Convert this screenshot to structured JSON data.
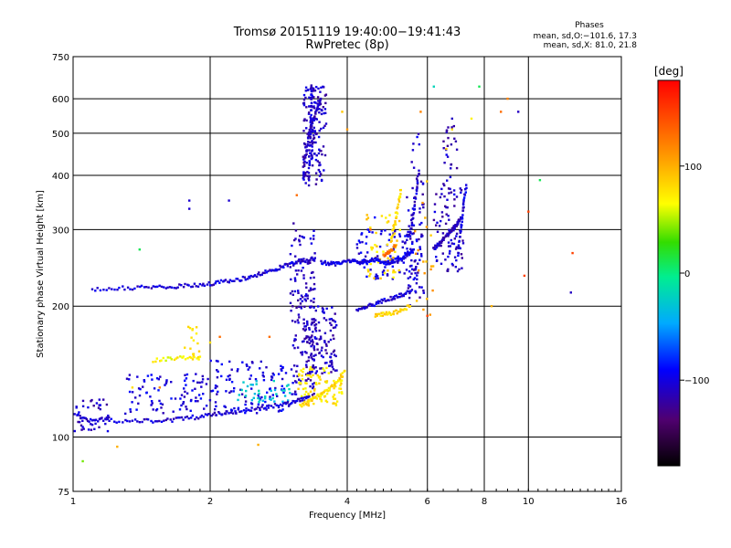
{
  "chart_data": {
    "type": "scatter",
    "title": "Tromsø 20151119 19:40:00−19:41:43",
    "subtitle": "RwPretec (8p)",
    "xlabel": "Frequency [MHz]",
    "ylabel": "Stationary phase Virtual Height [km]",
    "x_scale": "log",
    "y_scale": "log",
    "xlim": [
      1,
      16
    ],
    "ylim": [
      75,
      750
    ],
    "x_ticks": [
      1,
      2,
      4,
      6,
      8,
      10,
      16
    ],
    "y_ticks": [
      75,
      100,
      200,
      300,
      400,
      500,
      600,
      750
    ],
    "grid": true,
    "phases_box": {
      "heading": "Phases",
      "line1": "mean, sd,O:−101.6, 17.3",
      "line2": "mean, sd,X:  81.0, 21.8"
    },
    "colorbar": {
      "label": "[deg]",
      "ticks": [
        "100",
        "0",
        "−100"
      ],
      "tick_values": [
        100,
        0,
        -100
      ],
      "range": [
        -180,
        180
      ]
    },
    "traces": [
      {
        "x": [
          1.02,
          1.06,
          1.1,
          1.15,
          1.2,
          1.3,
          1.4,
          1.5,
          1.6,
          1.7,
          1.8,
          1.9,
          2.0,
          2.1,
          2.2,
          2.3,
          2.45,
          2.6,
          2.75,
          2.9,
          3.0,
          3.1,
          3.2,
          3.3
        ],
        "y": [
          113,
          110,
          109,
          110,
          109,
          109,
          109,
          109,
          109,
          110,
          111,
          111,
          113,
          113,
          114,
          115,
          116,
          117,
          118,
          119,
          120,
          121,
          122,
          124
        ],
        "phase": -105
      },
      {
        "x": [
          1.1,
          1.2,
          1.3,
          1.4,
          1.5,
          1.6,
          1.7,
          1.8,
          1.9,
          2.0,
          2.1,
          2.2,
          2.3,
          2.4,
          2.5,
          2.6,
          2.7,
          2.8,
          2.9,
          3.0,
          3.1,
          3.2,
          3.3,
          3.4
        ],
        "y": [
          219,
          220,
          220,
          221,
          221,
          222,
          222,
          223,
          223,
          225,
          227,
          228,
          230,
          232,
          235,
          238,
          241,
          244,
          247,
          250,
          252,
          254,
          256,
          258
        ],
        "phase": -105
      },
      {
        "x": [
          3.5,
          3.6,
          3.7,
          3.8,
          3.9,
          4.0,
          4.1,
          4.2,
          4.3,
          4.4,
          4.5,
          4.6,
          4.7,
          4.8,
          4.9,
          5.0,
          5.1,
          5.2,
          5.3,
          5.4,
          5.5,
          5.6
        ],
        "y": [
          252,
          251,
          251,
          250,
          252,
          253,
          254,
          253,
          252,
          253,
          255,
          256,
          254,
          252,
          251,
          253,
          255,
          257,
          259,
          262,
          265,
          270
        ],
        "phase": -100
      },
      {
        "x": [
          4.2,
          4.35,
          4.5,
          4.65,
          4.8,
          4.95,
          5.1,
          5.25,
          5.4,
          5.55
        ],
        "y": [
          196,
          198,
          201,
          203,
          206,
          208,
          210,
          212,
          214,
          218
        ],
        "phase": -105
      },
      {
        "x": [
          4.6,
          4.75,
          4.9,
          5.05,
          5.2,
          5.35,
          5.5
        ],
        "y": [
          191,
          191,
          192,
          193,
          195,
          197,
          200
        ],
        "phase": 80
      },
      {
        "x": [
          3.15,
          3.25,
          3.35,
          3.45,
          3.55,
          3.65,
          3.75,
          3.85,
          3.95
        ],
        "y": [
          118,
          120,
          122,
          124,
          126,
          129,
          132,
          136,
          142
        ],
        "phase": 80
      },
      {
        "x": [
          1.5,
          1.6,
          1.7,
          1.8,
          1.9
        ],
        "y": [
          150,
          151,
          152,
          152,
          153
        ],
        "phase": 70
      },
      {
        "x": [
          3.3,
          3.3,
          3.31,
          3.32,
          3.33,
          3.33,
          3.34,
          3.34,
          3.35,
          3.35
        ],
        "y": [
          380,
          420,
          460,
          500,
          540,
          580,
          620,
          650,
          440,
          480
        ],
        "phase": -105
      },
      {
        "x": [
          3.2,
          3.22,
          3.25,
          3.27,
          3.3,
          3.34,
          3.38,
          3.42,
          3.46,
          3.5
        ],
        "y": [
          400,
          430,
          450,
          470,
          500,
          520,
          545,
          560,
          580,
          600
        ],
        "phase": -110
      },
      {
        "x": [
          6.2,
          6.3,
          6.4,
          6.5,
          6.6,
          6.7,
          6.8,
          6.9,
          7.0,
          7.1
        ],
        "y": [
          270,
          275,
          280,
          285,
          290,
          295,
          300,
          305,
          310,
          320
        ],
        "phase": -110
      },
      {
        "x": [
          7.0,
          7.05,
          7.1,
          7.15,
          7.2,
          7.25,
          7.3
        ],
        "y": [
          260,
          280,
          300,
          320,
          340,
          360,
          380
        ],
        "phase": -100
      },
      {
        "x": [
          5.5,
          5.55,
          5.6,
          5.65,
          5.7,
          5.75
        ],
        "y": [
          290,
          310,
          330,
          350,
          380,
          410
        ],
        "phase": -105
      },
      {
        "x": [
          5.0,
          5.05,
          5.1,
          5.15,
          5.2,
          5.25
        ],
        "y": [
          280,
          300,
          310,
          330,
          350,
          370
        ],
        "phase": 80
      },
      {
        "x": [
          4.8,
          4.9,
          5.0,
          5.1
        ],
        "y": [
          260,
          265,
          270,
          275
        ],
        "phase": 130
      }
    ],
    "scatter": [
      {
        "x": 8.7,
        "y": 560,
        "phase": 130
      },
      {
        "x": 9.0,
        "y": 600,
        "phase": 120
      },
      {
        "x": 7.5,
        "y": 540,
        "phase": 70
      },
      {
        "x": 6.8,
        "y": 510,
        "phase": 80
      },
      {
        "x": 7.8,
        "y": 640,
        "phase": 10
      },
      {
        "x": 6.2,
        "y": 640,
        "phase": -20
      },
      {
        "x": 5.8,
        "y": 560,
        "phase": 120
      },
      {
        "x": 4.0,
        "y": 510,
        "phase": 110
      },
      {
        "x": 3.9,
        "y": 560,
        "phase": 90
      },
      {
        "x": 9.5,
        "y": 560,
        "phase": -110
      },
      {
        "x": 10.0,
        "y": 330,
        "phase": 150
      },
      {
        "x": 10.6,
        "y": 390,
        "phase": 10
      },
      {
        "x": 12.5,
        "y": 265,
        "phase": 150
      },
      {
        "x": 12.4,
        "y": 215,
        "phase": -110
      },
      {
        "x": 9.8,
        "y": 235,
        "phase": 150
      },
      {
        "x": 8.3,
        "y": 200,
        "phase": 100
      },
      {
        "x": 6.0,
        "y": 190,
        "phase": 150
      },
      {
        "x": 1.25,
        "y": 95,
        "phase": 100
      },
      {
        "x": 1.05,
        "y": 88,
        "phase": 40
      },
      {
        "x": 2.55,
        "y": 96,
        "phase": 100
      },
      {
        "x": 1.4,
        "y": 270,
        "phase": 10
      },
      {
        "x": 1.8,
        "y": 335,
        "phase": -105
      },
      {
        "x": 1.8,
        "y": 350,
        "phase": -105
      },
      {
        "x": 2.2,
        "y": 350,
        "phase": -105
      },
      {
        "x": 1.35,
        "y": 130,
        "phase": 80
      },
      {
        "x": 1.55,
        "y": 130,
        "phase": 120
      },
      {
        "x": 2.0,
        "y": 165,
        "phase": 80
      },
      {
        "x": 2.1,
        "y": 170,
        "phase": 130
      },
      {
        "x": 2.7,
        "y": 170,
        "phase": 130
      },
      {
        "x": 3.1,
        "y": 360,
        "phase": 130
      },
      {
        "x": 3.05,
        "y": 310,
        "phase": -120
      },
      {
        "x": 4.5,
        "y": 300,
        "phase": 130
      },
      {
        "x": 4.6,
        "y": 320,
        "phase": -90
      },
      {
        "x": 5.7,
        "y": 490,
        "phase": -90
      },
      {
        "x": 6.6,
        "y": 460,
        "phase": 90
      },
      {
        "x": 6.8,
        "y": 540,
        "phase": -110
      }
    ],
    "clusters": [
      {
        "x": [
          1.3,
          2.0
        ],
        "y": [
          113,
          140
        ],
        "n": 90,
        "phase": -100
      },
      {
        "x": [
          2.0,
          3.0
        ],
        "y": [
          112,
          150
        ],
        "n": 110,
        "phase": -100
      },
      {
        "x": [
          2.3,
          3.0
        ],
        "y": [
          120,
          135
        ],
        "n": 40,
        "phase": -30
      },
      {
        "x": [
          3.0,
          3.4
        ],
        "y": [
          125,
          300
        ],
        "n": 170,
        "phase": -110
      },
      {
        "x": [
          3.3,
          3.8
        ],
        "y": [
          140,
          200
        ],
        "n": 110,
        "phase": -110
      },
      {
        "x": [
          3.1,
          3.9
        ],
        "y": [
          118,
          145
        ],
        "n": 90,
        "phase": 75
      },
      {
        "x": [
          3.2,
          3.6
        ],
        "y": [
          380,
          640
        ],
        "n": 140,
        "phase": -110
      },
      {
        "x": [
          4.2,
          5.8
        ],
        "y": [
          230,
          300
        ],
        "n": 110,
        "phase": -100
      },
      {
        "x": [
          4.4,
          5.3
        ],
        "y": [
          230,
          330
        ],
        "n": 50,
        "phase": 80
      },
      {
        "x": [
          5.4,
          5.9
        ],
        "y": [
          200,
          500
        ],
        "n": 60,
        "phase": -110
      },
      {
        "x": [
          6.2,
          7.2
        ],
        "y": [
          240,
          380
        ],
        "n": 90,
        "phase": -110
      },
      {
        "x": [
          6.5,
          7.0
        ],
        "y": [
          380,
          560
        ],
        "n": 25,
        "phase": -110
      },
      {
        "x": [
          5.6,
          6.2
        ],
        "y": [
          190,
          400
        ],
        "n": 20,
        "phase": 100
      },
      {
        "x": [
          1.0,
          1.2
        ],
        "y": [
          103,
          122
        ],
        "n": 40,
        "phase": -110
      },
      {
        "x": [
          1.75,
          1.9
        ],
        "y": [
          150,
          180
        ],
        "n": 16,
        "phase": 80
      }
    ]
  }
}
